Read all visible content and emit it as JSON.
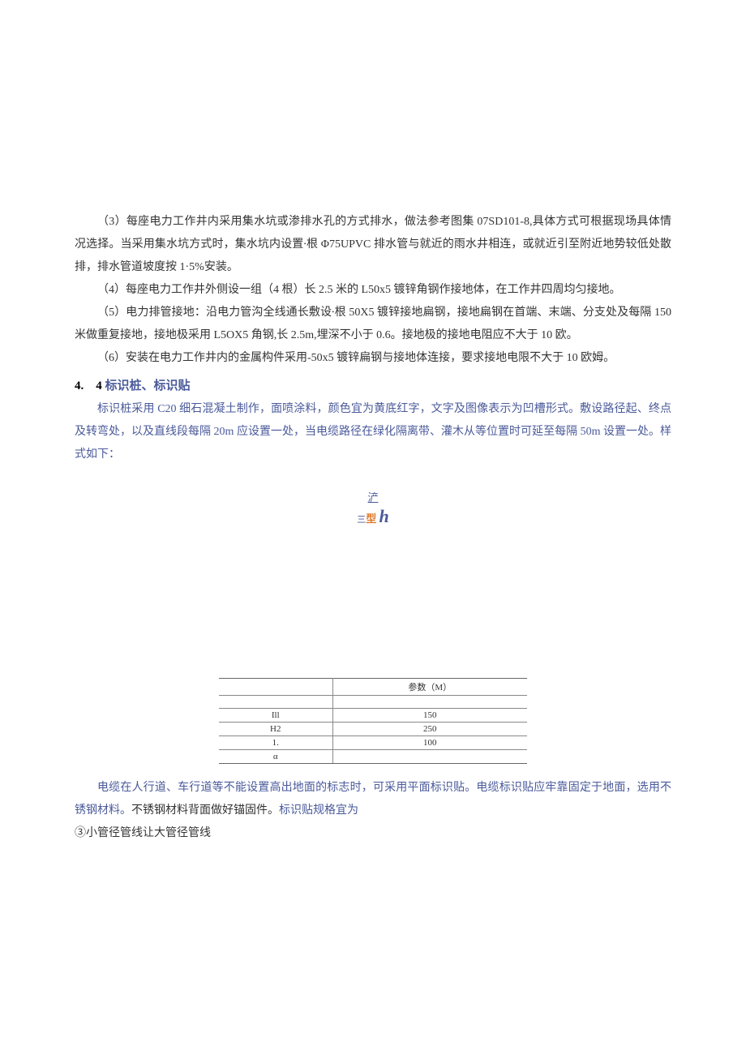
{
  "paragraphs": {
    "p3": "（3）每座电力工作井内采用集水坑或渗排水孔的方式排水，做法参考图集 07SD101-8,具体方式可根据现场具体情况选择。当采用集水坑方式时，集水坑内设置∙根 Φ75UPVC 排水管与就近的雨水井相连，或就近引至附近地势较低处散排，排水管道坡度按 1·5%安装。",
    "p4": "（4）每座电力工作井外侧设一组（4 根）长 2.5 米的 L50x5 镀锌角钢作接地体，在工作井四周均匀接地。",
    "p5": "（5）电力排管接地：沿电力管沟全线通长敷设∙根 50X5 镀锌接地扁钢，接地扁钢在首端、末端、分支处及每隔 150 米做重复接地，接地极采用 L5OX5 角钢,长 2.5m,埋深不小于 0.6。接地极的接地电阻应不大于 10 欧。",
    "p6": "（6）安装在电力工作井内的金属构件采用-50x5 镀锌扁钢与接地体连接，要求接地电限不大于 10 欧姆。"
  },
  "section": {
    "number": "4.　4",
    "title": "标识桩、标识贴"
  },
  "blue_para1": "标识桩采用 C20 细石混凝土制作，面喷涂料，颜色宜为黄底红字，文字及图像表示为凹槽形式。敷设路径起、终点及转弯处，以及直线段每隔 20m 应设置一处，当电缆路径在绿化隔离带、灌木从等位置时可延至每隔 50m 设置一处。样式如下：",
  "figure": {
    "top": "浐",
    "san": "三",
    "xing": "型",
    "h": "h"
  },
  "table": {
    "header_label": "",
    "header_value": "参数（M）",
    "rows": [
      {
        "label": "",
        "value": ""
      },
      {
        "label": "Ill",
        "value": "150"
      },
      {
        "label": "H2",
        "value": "250"
      },
      {
        "label": "1.",
        "value": "100"
      },
      {
        "label": "α",
        "value": ""
      }
    ]
  },
  "blue_para2_a": "电缆在人行道、车行道等不能设置高出地面的标志时，可采用平面标识贴。电缆标识贴应牢靠固定于地面，选用不锈钢材料。",
  "blue_para2_b": "不锈钢材料背面做好锚固件。",
  "blue_para2_c": "标识贴规格宜为",
  "circled_line": "③小管径管线让大管径管线",
  "colors": {
    "text": "#333333",
    "blue": "#4a5a9a",
    "orange": "#e07a2a",
    "bg": "#ffffff",
    "border": "#888888"
  },
  "fonts": {
    "body_size_pt": 10.5,
    "heading_size_pt": 11,
    "line_height": 2.0
  }
}
